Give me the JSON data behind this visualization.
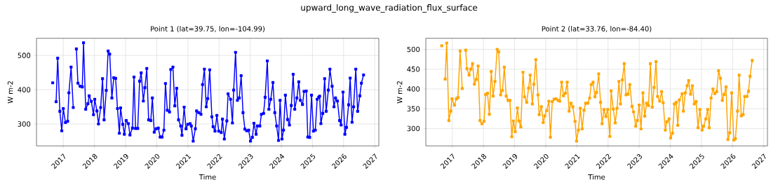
{
  "chart_data": [
    {
      "type": "line",
      "title": "Point 1 (lat=39.75, lon=-104.99)",
      "annotations": [
        "upward_long_wave_radiation_flux_surface"
      ],
      "xlabel": "Time",
      "ylabel": "W m-2",
      "color": "#0000ff",
      "marker": "square",
      "grid": true,
      "xlim": [
        2016.14,
        2027.13
      ],
      "ylim": [
        236,
        550
      ],
      "xticks": [
        2017,
        2018,
        2019,
        2020,
        2021,
        2022,
        2023,
        2024,
        2025,
        2026,
        2027
      ],
      "yticks": [
        300,
        400,
        500
      ],
      "x": [
        2016.66,
        2016.72,
        2016.77,
        2016.82,
        2016.89,
        2016.95,
        2017.0,
        2017.07,
        2017.14,
        2017.18,
        2017.25,
        2017.32,
        2017.37,
        2017.42,
        2017.47,
        2017.54,
        2017.61,
        2017.65,
        2017.72,
        2017.79,
        2017.83,
        2017.9,
        2017.97,
        2018.01,
        2018.08,
        2018.13,
        2018.2,
        2018.26,
        2018.31,
        2018.38,
        2018.44,
        2018.49,
        2018.56,
        2018.62,
        2018.68,
        2018.74,
        2018.8,
        2018.84,
        2018.91,
        2018.96,
        2019.02,
        2019.09,
        2019.14,
        2019.22,
        2019.27,
        2019.32,
        2019.39,
        2019.45,
        2019.5,
        2019.57,
        2019.62,
        2019.68,
        2019.74,
        2019.81,
        2019.86,
        2019.92,
        2019.98,
        2020.05,
        2020.11,
        2020.17,
        2020.23,
        2020.28,
        2020.34,
        2020.41,
        2020.45,
        2020.52,
        2020.58,
        2020.64,
        2020.7,
        2020.77,
        2020.81,
        2020.88,
        2020.94,
        2021.0,
        2021.07,
        2021.11,
        2021.17,
        2021.24,
        2021.28,
        2021.35,
        2021.42,
        2021.47,
        2021.53,
        2021.59,
        2021.64,
        2021.7,
        2021.77,
        2021.81,
        2021.87,
        2021.93,
        2021.99,
        2022.07,
        2022.11,
        2022.17,
        2022.25,
        2022.29,
        2022.37,
        2022.43,
        2022.47,
        2022.53,
        2022.59,
        2022.65,
        2022.71,
        2022.77,
        2022.83,
        2022.89,
        2022.95,
        2023.01,
        2023.07,
        2023.12,
        2023.19,
        2023.23,
        2023.31,
        2023.36,
        2023.43,
        2023.48,
        2023.55,
        2023.6,
        2023.66,
        2023.73,
        2023.79,
        2023.85,
        2023.91,
        2023.96,
        2024.02,
        2024.07,
        2024.13,
        2024.2,
        2024.26,
        2024.32,
        2024.38,
        2024.43,
        2024.5,
        2024.56,
        2024.61,
        2024.68,
        2024.73,
        2024.8,
        2024.85,
        2024.91,
        2024.97,
        2025.03,
        2025.09,
        2025.15,
        2025.2,
        2025.23,
        2025.27,
        2025.33,
        2025.39,
        2025.44,
        2025.51,
        2025.56,
        2025.63,
        2025.69,
        2025.74,
        2025.8,
        2025.87,
        2025.92,
        2025.98,
        2026.04,
        2026.09,
        2026.16,
        2026.21,
        2026.27,
        2026.32,
        2026.39,
        2026.45,
        2026.52,
        2026.57,
        2026.64
      ],
      "values": [
        420,
        null,
        365,
        492,
        337,
        280,
        345,
        304,
        308,
        391,
        466,
        348,
        null,
        519,
        419,
        410,
        408,
        537,
        343,
        359,
        382,
        366,
        327,
        372,
        338,
        300,
        348,
        432,
        312,
        398,
        513,
        504,
        376,
        435,
        433,
        345,
        273,
        347,
        299,
        270,
        310,
        301,
        268,
        288,
        437,
        287,
        287,
        425,
        449,
        367,
        406,
        462,
        312,
        310,
        376,
        276,
        286,
        288,
        262,
        262,
        282,
        418,
        340,
        335,
        459,
        466,
        353,
        404,
        312,
        294,
        267,
        349,
        286,
        299,
        301,
        294,
        250,
        286,
        338,
        333,
        328,
        415,
        460,
        350,
        374,
        458,
        321,
        292,
        279,
        325,
        279,
        275,
        314,
        256,
        309,
        388,
        372,
        303,
        399,
        509,
        369,
        376,
        441,
        333,
        285,
        280,
        282,
        250,
        261,
        302,
        270,
        294,
        294,
        328,
        331,
        378,
        484,
        343,
        372,
        421,
        333,
        294,
        252,
        369,
        256,
        282,
        384,
        313,
        297,
        354,
        445,
        343,
        376,
        423,
        369,
        357,
        395,
        396,
        262,
        261,
        384,
        279,
        282,
        372,
        378,
        381,
        301,
        331,
        432,
        337,
        399,
        460,
        410,
        350,
        376,
        367,
        310,
        297,
        393,
        270,
        290,
        356,
        434,
        305,
        350,
        460,
        337,
        382,
        419,
        443
      ]
    },
    {
      "type": "line",
      "title": "Point 2 (lat=33.76, lon=-84.40)",
      "xlabel": "Time",
      "ylabel": "W m-2",
      "color": "#ffa500",
      "marker": "square",
      "grid": true,
      "xlim": [
        2016.15,
        2027.12
      ],
      "ylim": [
        256,
        528
      ],
      "xticks": [
        2017,
        2018,
        2019,
        2020,
        2021,
        2022,
        2023,
        2024,
        2025,
        2026,
        2027
      ],
      "yticks": [
        300,
        350,
        400,
        450,
        500
      ],
      "x": [
        2016.66,
        2016.72,
        2016.77,
        2016.82,
        2016.89,
        2016.95,
        2016.99,
        2017.07,
        2017.13,
        2017.18,
        2017.25,
        2017.32,
        2017.38,
        2017.43,
        2017.47,
        2017.54,
        2017.59,
        2017.65,
        2017.71,
        2017.77,
        2017.83,
        2017.89,
        2017.95,
        2018.02,
        2018.07,
        2018.13,
        2018.19,
        2018.25,
        2018.31,
        2018.37,
        2018.44,
        2018.49,
        2018.55,
        2018.61,
        2018.67,
        2018.73,
        2018.79,
        2018.85,
        2018.91,
        2018.96,
        2019.02,
        2019.09,
        2019.14,
        2019.2,
        2019.27,
        2019.32,
        2019.39,
        2019.45,
        2019.5,
        2019.57,
        2019.62,
        2019.68,
        2019.75,
        2019.79,
        2019.86,
        2019.92,
        2019.97,
        2020.03,
        2020.1,
        2020.15,
        2020.21,
        2020.27,
        2020.33,
        2020.4,
        2020.45,
        2020.51,
        2020.57,
        2020.63,
        2020.69,
        2020.75,
        2020.81,
        2020.87,
        2020.94,
        2020.99,
        2021.05,
        2021.11,
        2021.17,
        2021.23,
        2021.28,
        2021.35,
        2021.41,
        2021.46,
        2021.52,
        2021.58,
        2021.63,
        2021.7,
        2021.76,
        2021.81,
        2021.87,
        2021.93,
        2021.99,
        2022.06,
        2022.1,
        2022.17,
        2022.23,
        2022.29,
        2022.35,
        2022.4,
        2022.46,
        2022.52,
        2022.58,
        2022.64,
        2022.7,
        2022.77,
        2022.82,
        2022.89,
        2022.94,
        2023.0,
        2023.06,
        2023.12,
        2023.18,
        2023.24,
        2023.3,
        2023.36,
        2023.42,
        2023.48,
        2023.54,
        2023.59,
        2023.66,
        2023.72,
        2023.77,
        2023.84,
        2023.89,
        2023.96,
        2024.01,
        2024.07,
        2024.13,
        2024.19,
        2024.24,
        2024.29,
        2024.38,
        2024.42,
        2024.48,
        2024.54,
        2024.59,
        2024.65,
        2024.71,
        2024.77,
        2024.83,
        2024.89,
        2024.95,
        2025.02,
        2025.07,
        2025.14,
        2025.2,
        2025.25,
        2025.31,
        2025.37,
        2025.43,
        2025.49,
        2025.55,
        2025.61,
        2025.67,
        2025.73,
        2025.79,
        2025.85,
        2025.91,
        2025.97,
        2026.04,
        2026.09,
        2026.16,
        2026.21,
        2026.28,
        2026.34,
        2026.39,
        2026.46,
        2026.51,
        2026.56,
        2026.63
      ],
      "values": [
        509,
        null,
        425,
        516,
        320,
        344,
        375,
        359,
        375,
        378,
        496,
        401,
        null,
        498,
        451,
        435,
        450,
        464,
        412,
        424,
        458,
        320,
        312,
        318,
        386,
        389,
        336,
        444,
        382,
        419,
        500,
        494,
        385,
        396,
        455,
        382,
        371,
        371,
        279,
        319,
        292,
        352,
        319,
        304,
        442,
        380,
        366,
        402,
        435,
        362,
        412,
        474,
        385,
        335,
        355,
        315,
        332,
        345,
        369,
        278,
        368,
        374,
        375,
        371,
        369,
        417,
        383,
        389,
        417,
        344,
        364,
        355,
        318,
        268,
        296,
        351,
        299,
        346,
        364,
        364,
        377,
        411,
        417,
        380,
        391,
        438,
        366,
        312,
        348,
        330,
        348,
        280,
        395,
        349,
        314,
        351,
        419,
        362,
        423,
        464,
        385,
        387,
        411,
        356,
        342,
        306,
        320,
        359,
        299,
        390,
        331,
        364,
        358,
        464,
        354,
        404,
        469,
        381,
        369,
        393,
        365,
        296,
        317,
        324,
        276,
        288,
        362,
        366,
        308,
        372,
        388,
        344,
        390,
        408,
        421,
        387,
        408,
        362,
        368,
        302,
        348,
        296,
        306,
        324,
        348,
        302,
        377,
        400,
        388,
        393,
        446,
        427,
        371,
        386,
        405,
        272,
        289,
        390,
        271,
        274,
        344,
        435,
        332,
        335,
        381,
        381,
        394,
        432,
        472
      ]
    }
  ]
}
